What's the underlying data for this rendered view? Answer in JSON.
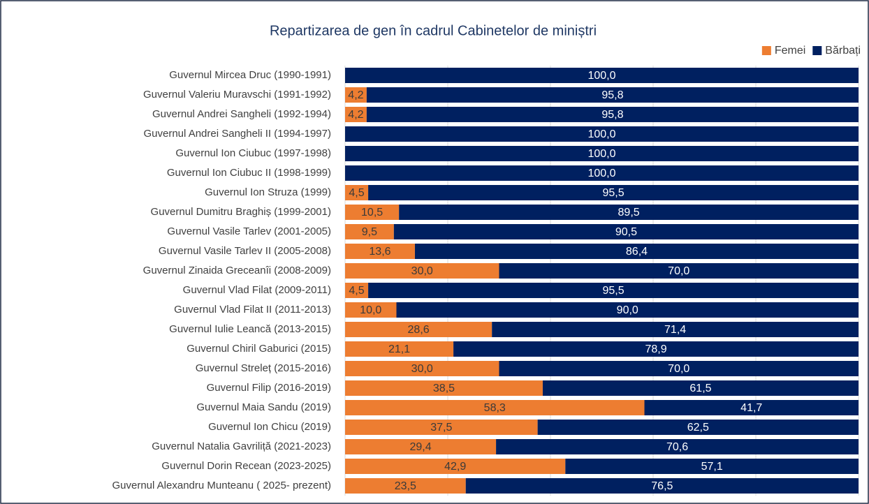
{
  "chart_data": {
    "type": "bar",
    "orientation": "horizontal",
    "stacked": true,
    "title": "Repartizarea de gen în cadrul Cabinetelor de miniștri",
    "categories": [
      "Guvernul Mircea Druc (1990-1991)",
      "Guvernul Valeriu Muravschi (1991-1992)",
      "Guvernul Andrei Sangheli (1992-1994)",
      "Guvernul Andrei Sangheli II (1994-1997)",
      "Guvernul Ion Ciubuc (1997-1998)",
      "Guvernul Ion Ciubuc II (1998-1999)",
      "Guvernul Ion Struza (1999)",
      "Guvernul Dumitru Braghiș (1999-2001)",
      "Guvernul Vasile Tarlev (2001-2005)",
      "Guvernul Vasile Tarlev II (2005-2008)",
      "Guvernul Zinaida Greceanîi (2008-2009)",
      "Guvernul Vlad Filat (2009-2011)",
      "Guvernul Vlad Filat II (2011-2013)",
      "Guvernul Iulie Leancă (2013-2015)",
      "Guvernul Chiril Gaburici (2015)",
      "Guvernul Streleț (2015-2016)",
      "Guvernul Filip (2016-2019)",
      "Guvernul Maia Sandu (2019)",
      "Guvernul Ion Chicu (2019)",
      "Guvernul Natalia Gavriliță (2021-2023)",
      "Guvernul Dorin Recean (2023-2025)",
      "Guvernul Alexandru Munteanu ( 2025- prezent)"
    ],
    "series": [
      {
        "name": "Femei",
        "color": "#ed7d31",
        "values": [
          0,
          4.2,
          4.2,
          0,
          0,
          0,
          4.5,
          10.5,
          9.5,
          13.6,
          30.0,
          4.5,
          10.0,
          28.6,
          21.1,
          30.0,
          38.5,
          58.3,
          37.5,
          29.4,
          42.9,
          23.5
        ],
        "value_labels": [
          null,
          "4,2",
          "4,2",
          null,
          null,
          null,
          "4,5",
          "10,5",
          "9,5",
          "13,6",
          "30,0",
          "4,5",
          "10,0",
          "28,6",
          "21,1",
          "30,0",
          "38,5",
          "58,3",
          "37,5",
          "29,4",
          "42,9",
          "23,5"
        ]
      },
      {
        "name": "Bărbați",
        "color": "#002060",
        "values": [
          100.0,
          95.8,
          95.8,
          100.0,
          100.0,
          100.0,
          95.5,
          89.5,
          90.5,
          86.4,
          70.0,
          95.5,
          90.0,
          71.4,
          78.9,
          70.0,
          61.5,
          41.7,
          62.5,
          70.6,
          57.1,
          76.5
        ],
        "value_labels": [
          "100,0",
          "95,8",
          "95,8",
          "100,0",
          "100,0",
          "100,0",
          "95,5",
          "89,5",
          "90,5",
          "86,4",
          "70,0",
          "95,5",
          "90,0",
          "71,4",
          "78,9",
          "70,0",
          "61,5",
          "41,7",
          "62,5",
          "70,6",
          "57,1",
          "76,5"
        ]
      }
    ],
    "xlim": [
      0,
      100
    ],
    "xticks": [
      0,
      20,
      40,
      60,
      80,
      100
    ],
    "grid": true,
    "legend": "top-right"
  }
}
